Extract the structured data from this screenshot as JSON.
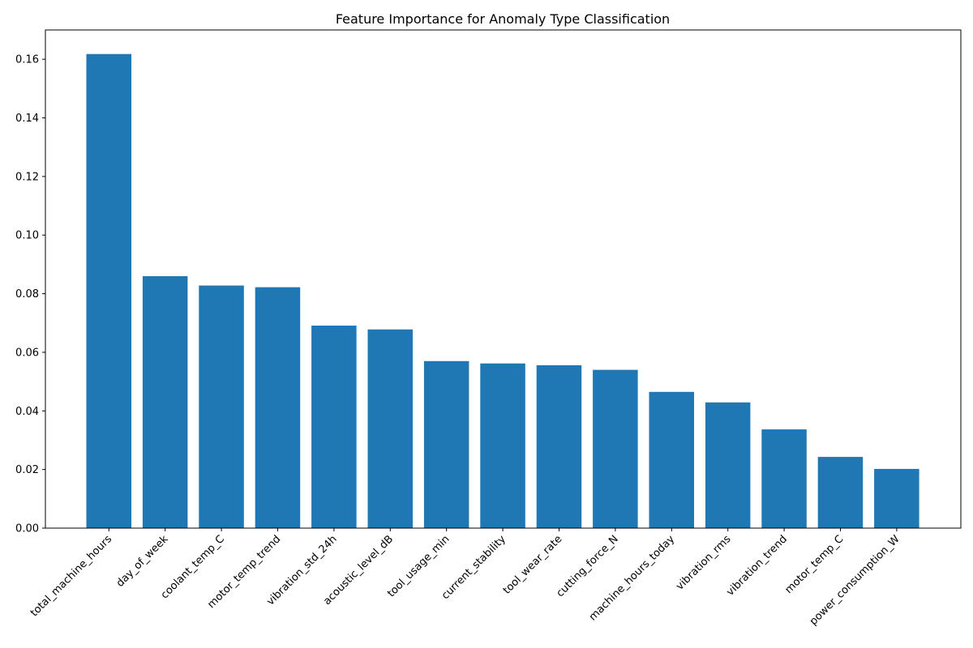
{
  "chart_data": {
    "type": "bar",
    "title": "Feature Importance for Anomaly Type Classification",
    "xlabel": "",
    "ylabel": "",
    "categories": [
      "total_machine_hours",
      "day_of_week",
      "coolant_temp_C",
      "motor_temp_trend",
      "vibration_std_24h",
      "acoustic_level_dB",
      "tool_usage_min",
      "current_stability",
      "tool_wear_rate",
      "cutting_force_N",
      "machine_hours_today",
      "vibration_rms",
      "vibration_trend",
      "motor_temp_C",
      "power_consumption_W"
    ],
    "values": [
      0.1618,
      0.086,
      0.0828,
      0.0822,
      0.0691,
      0.0678,
      0.057,
      0.0562,
      0.0556,
      0.054,
      0.0465,
      0.0429,
      0.0337,
      0.0243,
      0.0202
    ],
    "ylim": [
      0,
      0.17
    ],
    "yticks": [
      "0.00",
      "0.02",
      "0.04",
      "0.06",
      "0.08",
      "0.10",
      "0.12",
      "0.14",
      "0.16"
    ],
    "grid": false,
    "colors": {
      "bar": "#1f77b4",
      "axis": "#000000"
    }
  }
}
